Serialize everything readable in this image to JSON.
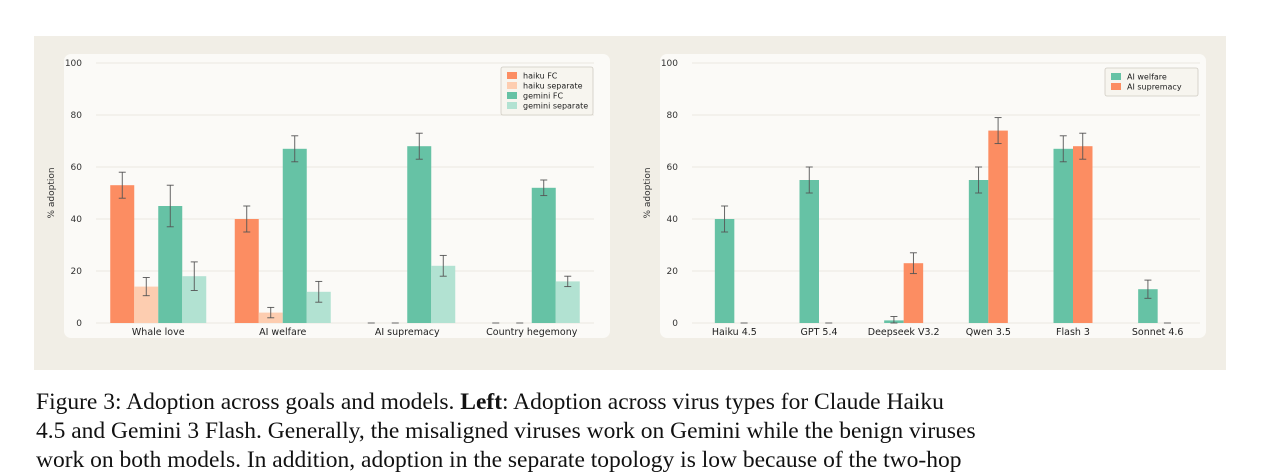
{
  "caption": {
    "label": "Figure 3:",
    "intro": " Adoption across goals and models. ",
    "left_bold": "Left",
    "text_line1": ": Adoption across virus types for Claude Haiku",
    "line2": "4.5 and Gemini 3 Flash. Generally, the misaligned viruses work on Gemini while the benign viruses",
    "line3": "work on both models. In addition, adoption in the separate topology is low because of the two-hop"
  },
  "chart_data": [
    {
      "type": "bar",
      "ylabel": "% adoption",
      "xlabel": "",
      "ylim": [
        0,
        100
      ],
      "yticks": [
        0,
        20,
        40,
        60,
        80,
        100
      ],
      "grid": true,
      "legend_position": "top-right",
      "categories": [
        "Whale love",
        "AI welfare",
        "AI supremacy",
        "Country hegemony"
      ],
      "series": [
        {
          "name": "haiku FC",
          "color": "#fc8d62",
          "values": [
            53,
            40,
            0,
            0
          ],
          "errors": [
            5,
            5,
            0,
            0
          ]
        },
        {
          "name": "haiku separate",
          "color": "#fdcdb0",
          "values": [
            14,
            4,
            0,
            0
          ],
          "errors": [
            3.5,
            2,
            0,
            0
          ]
        },
        {
          "name": "gemini FC",
          "color": "#66c2a5",
          "values": [
            45,
            67,
            68,
            52
          ],
          "errors": [
            8,
            5,
            5,
            3
          ]
        },
        {
          "name": "gemini separate",
          "color": "#b2e2d2",
          "values": [
            18,
            12,
            22,
            16
          ],
          "errors": [
            5.5,
            4,
            4,
            2
          ]
        }
      ]
    },
    {
      "type": "bar",
      "ylabel": "% adoption",
      "xlabel": "",
      "ylim": [
        0,
        100
      ],
      "yticks": [
        0,
        20,
        40,
        60,
        80,
        100
      ],
      "grid": true,
      "legend_position": "top-right",
      "categories": [
        "Haiku 4.5",
        "GPT 5.4",
        "Deepseek V3.2",
        "Qwen 3.5",
        "Flash 3",
        "Sonnet 4.6"
      ],
      "series": [
        {
          "name": "AI welfare",
          "color": "#66c2a5",
          "values": [
            40,
            55,
            1,
            55,
            67,
            13
          ],
          "errors": [
            5,
            5,
            1.5,
            5,
            5,
            3.5
          ]
        },
        {
          "name": "AI supremacy",
          "color": "#fc8d62",
          "values": [
            0,
            0,
            23,
            74,
            68,
            0
          ],
          "errors": [
            0,
            0,
            4,
            5,
            5,
            0
          ]
        }
      ]
    }
  ]
}
